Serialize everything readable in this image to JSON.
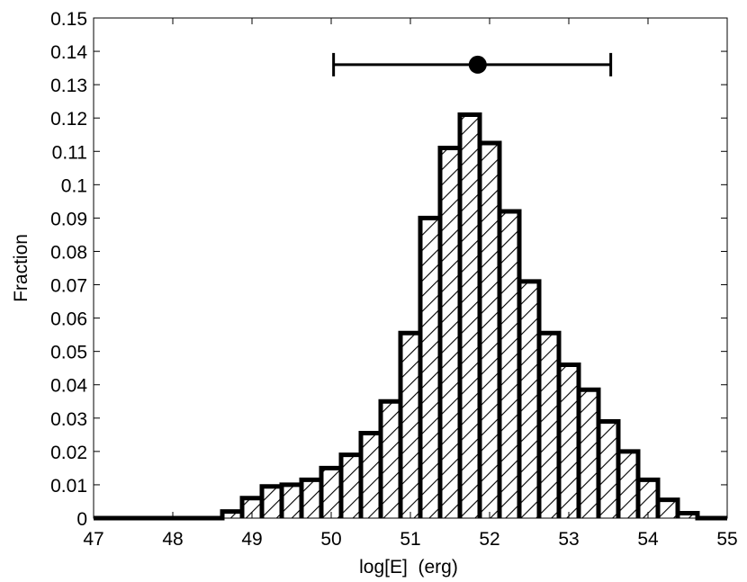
{
  "chart_data": {
    "type": "histogram",
    "title": "",
    "xlabel": "log[E]  (erg)",
    "ylabel": "Fraction",
    "xlim": [
      47,
      55
    ],
    "ylim": [
      0,
      0.15
    ],
    "xticks": [
      47,
      48,
      49,
      50,
      51,
      52,
      53,
      54,
      55
    ],
    "yticks": [
      0,
      0.01,
      0.02,
      0.03,
      0.04,
      0.05,
      0.06,
      0.07,
      0.08,
      0.09,
      0.1,
      0.11,
      0.12,
      0.13,
      0.14,
      0.15
    ],
    "xtick_labels": [
      "47",
      "48",
      "49",
      "50",
      "51",
      "52",
      "53",
      "54",
      "55"
    ],
    "ytick_labels": [
      "0",
      "0.01",
      "0.02",
      "0.03",
      "0.04",
      "0.05",
      "0.06",
      "0.07",
      "0.08",
      "0.09",
      "0.1",
      "0.11",
      "0.12",
      "0.13",
      "0.14",
      "0.15"
    ],
    "grid": false,
    "fill": "diagonal-hatch",
    "bin_width": 0.25,
    "bins": [
      {
        "x0": 48.625,
        "value": 0.002
      },
      {
        "x0": 48.875,
        "value": 0.006
      },
      {
        "x0": 49.125,
        "value": 0.0095
      },
      {
        "x0": 49.375,
        "value": 0.01
      },
      {
        "x0": 49.625,
        "value": 0.0115
      },
      {
        "x0": 49.875,
        "value": 0.015
      },
      {
        "x0": 50.125,
        "value": 0.019
      },
      {
        "x0": 50.375,
        "value": 0.0255
      },
      {
        "x0": 50.625,
        "value": 0.035
      },
      {
        "x0": 50.875,
        "value": 0.0555
      },
      {
        "x0": 51.125,
        "value": 0.09
      },
      {
        "x0": 51.375,
        "value": 0.111
      },
      {
        "x0": 51.625,
        "value": 0.121
      },
      {
        "x0": 51.875,
        "value": 0.1125
      },
      {
        "x0": 52.125,
        "value": 0.092
      },
      {
        "x0": 52.375,
        "value": 0.071
      },
      {
        "x0": 52.625,
        "value": 0.0555
      },
      {
        "x0": 52.875,
        "value": 0.046
      },
      {
        "x0": 53.125,
        "value": 0.0385
      },
      {
        "x0": 53.375,
        "value": 0.029
      },
      {
        "x0": 53.625,
        "value": 0.02
      },
      {
        "x0": 53.875,
        "value": 0.0115
      },
      {
        "x0": 54.125,
        "value": 0.0055
      },
      {
        "x0": 54.375,
        "value": 0.0015
      }
    ],
    "errorbar": {
      "x": 51.85,
      "y": 0.136,
      "xmin": 50.03,
      "xmax": 53.53
    },
    "colors": {
      "line": "#000000",
      "background": "#ffffff"
    }
  }
}
